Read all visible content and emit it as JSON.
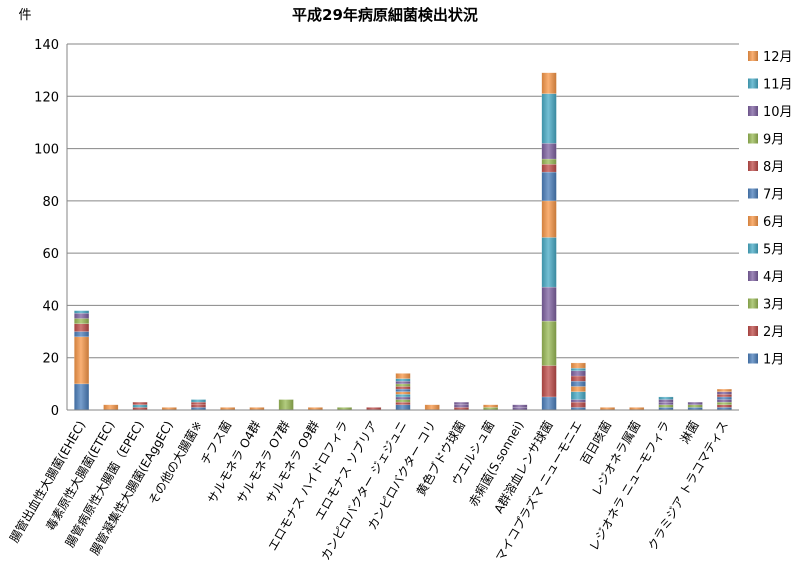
{
  "chart_data": {
    "type": "bar",
    "stacked": true,
    "title": "平成29年病原細菌検出状況",
    "ylabel": "件",
    "xlabel": "",
    "ylim": [
      0,
      140
    ],
    "yticks": [
      0,
      20,
      40,
      60,
      80,
      100,
      120,
      140
    ],
    "grid": true,
    "legend_position": "right",
    "categories": [
      "腸管出血性大腸菌(EHEC)",
      "毒素原性大腸菌(ETEC)",
      "腸管病原性大腸菌（EPEC)",
      "腸管凝集性大腸菌(EAggEC)",
      "その他の大腸菌※",
      "チフス菌",
      "サルモネラ O4群",
      "サルモネラ O7群",
      "サルモネラ O9群",
      "エロモナス ハイドロフィラ",
      "エロモナス ソブリア",
      "カンピロバクター ジェジュニ",
      "カンピロバクター コリ",
      "黄色ブドウ球菌",
      "ウエルシュ菌",
      "赤痢菌(S.sonnei)",
      "A群溶血レンサ球菌",
      "マイコプラズマ ニューモニエ",
      "百日咳菌",
      "レジオネラ属菌",
      "レジオネラ ニューモフィラ",
      "淋菌",
      "クラミジア トラコマティス"
    ],
    "series": [
      {
        "name": "1月",
        "color": "#4A7EBB",
        "values": [
          10,
          0,
          0,
          0,
          1,
          0,
          0,
          0,
          0,
          0,
          0,
          2,
          0,
          0,
          0,
          0,
          5,
          1,
          0,
          0,
          1,
          1,
          1
        ]
      },
      {
        "name": "2月",
        "color": "#BE4B48",
        "values": [
          0,
          0,
          1,
          0,
          1,
          0,
          0,
          0,
          0,
          0,
          0,
          1,
          0,
          1,
          0,
          0,
          12,
          2,
          0,
          0,
          0,
          0,
          1
        ]
      },
      {
        "name": "3月",
        "color": "#98B954",
        "values": [
          0,
          0,
          0,
          0,
          0,
          0,
          0,
          4,
          0,
          1,
          0,
          1,
          0,
          0,
          1,
          0,
          17,
          0,
          0,
          0,
          1,
          1,
          1
        ]
      },
      {
        "name": "4月",
        "color": "#7D60A0",
        "values": [
          0,
          0,
          0,
          0,
          0,
          0,
          0,
          0,
          0,
          0,
          0,
          1,
          0,
          1,
          0,
          1,
          13,
          1,
          0,
          0,
          1,
          0,
          1
        ]
      },
      {
        "name": "5月",
        "color": "#46AAC5",
        "values": [
          0,
          0,
          1,
          0,
          0,
          0,
          0,
          0,
          0,
          0,
          0,
          1,
          0,
          0,
          0,
          0,
          19,
          3,
          0,
          0,
          0,
          0,
          0
        ]
      },
      {
        "name": "6月",
        "color": "#F79646",
        "values": [
          18,
          2,
          0,
          1,
          0,
          1,
          1,
          0,
          1,
          0,
          0,
          1,
          2,
          0,
          1,
          0,
          14,
          2,
          1,
          1,
          0,
          0,
          0
        ]
      },
      {
        "name": "7月",
        "color": "#4A7EBB",
        "values": [
          2,
          0,
          0,
          0,
          0,
          0,
          0,
          0,
          0,
          0,
          0,
          1,
          0,
          0,
          0,
          0,
          11,
          2,
          0,
          0,
          0,
          0,
          1
        ]
      },
      {
        "name": "8月",
        "color": "#BE4B48",
        "values": [
          3,
          0,
          1,
          0,
          1,
          0,
          0,
          0,
          0,
          0,
          1,
          1,
          0,
          0,
          0,
          0,
          3,
          2,
          0,
          0,
          0,
          0,
          1
        ]
      },
      {
        "name": "9月",
        "color": "#98B954",
        "values": [
          2,
          0,
          0,
          0,
          0,
          0,
          0,
          0,
          0,
          0,
          0,
          1,
          0,
          0,
          0,
          0,
          2,
          0,
          0,
          0,
          0,
          0,
          0
        ]
      },
      {
        "name": "10月",
        "color": "#7D60A0",
        "values": [
          2,
          0,
          0,
          0,
          0,
          0,
          0,
          0,
          0,
          0,
          0,
          1,
          0,
          1,
          0,
          1,
          6,
          2,
          0,
          0,
          1,
          1,
          1
        ]
      },
      {
        "name": "11月",
        "color": "#46AAC5",
        "values": [
          1,
          0,
          0,
          0,
          1,
          0,
          0,
          0,
          0,
          0,
          0,
          1,
          0,
          0,
          0,
          0,
          19,
          1,
          0,
          0,
          1,
          0,
          0
        ]
      },
      {
        "name": "12月",
        "color": "#F79646",
        "values": [
          0,
          0,
          0,
          0,
          0,
          0,
          0,
          0,
          0,
          0,
          0,
          2,
          0,
          0,
          0,
          0,
          8,
          2,
          0,
          0,
          0,
          0,
          1
        ]
      }
    ]
  }
}
